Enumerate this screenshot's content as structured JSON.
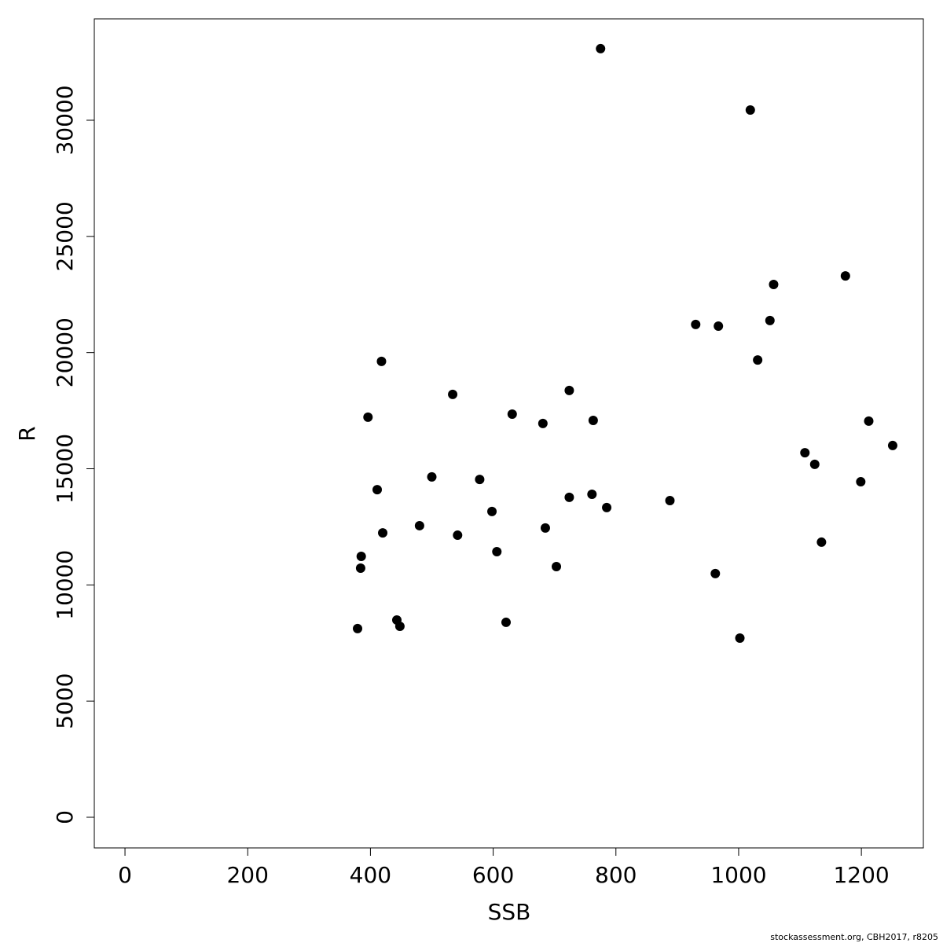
{
  "chart_data": {
    "type": "scatter",
    "x_label": "SSB",
    "y_label": "R",
    "footer": "stockassessment.org, CBH2017, r8205",
    "color": "#000000",
    "xlim": [
      -50,
      1301
    ],
    "ylim": [
      -1319,
      34363
    ],
    "xticks": [
      0,
      200,
      400,
      600,
      800,
      1000,
      1200
    ],
    "yticks": [
      0,
      5000,
      10000,
      15000,
      20000,
      25000,
      30000
    ],
    "x": [
      775,
      1019,
      1174,
      1057,
      930,
      967,
      1051,
      1031,
      418,
      534,
      724,
      396,
      631,
      681,
      763,
      1212,
      1251,
      1108,
      1124,
      1199,
      500,
      578,
      411,
      724,
      761,
      888,
      785,
      598,
      480,
      685,
      420,
      542,
      1135,
      385,
      606,
      384,
      703,
      962,
      443,
      448,
      621,
      379,
      1002
    ],
    "values": [
      33080,
      30440,
      23300,
      22930,
      21210,
      21140,
      21380,
      19680,
      19620,
      18200,
      18370,
      17220,
      17350,
      16950,
      17080,
      17050,
      16000,
      15690,
      15190,
      14440,
      14650,
      14540,
      14100,
      13770,
      13900,
      13630,
      13330,
      13160,
      12550,
      12450,
      12240,
      12140,
      11840,
      11230,
      11430,
      10720,
      10790,
      10490,
      8490,
      8220,
      8390,
      8120,
      7710
    ]
  }
}
